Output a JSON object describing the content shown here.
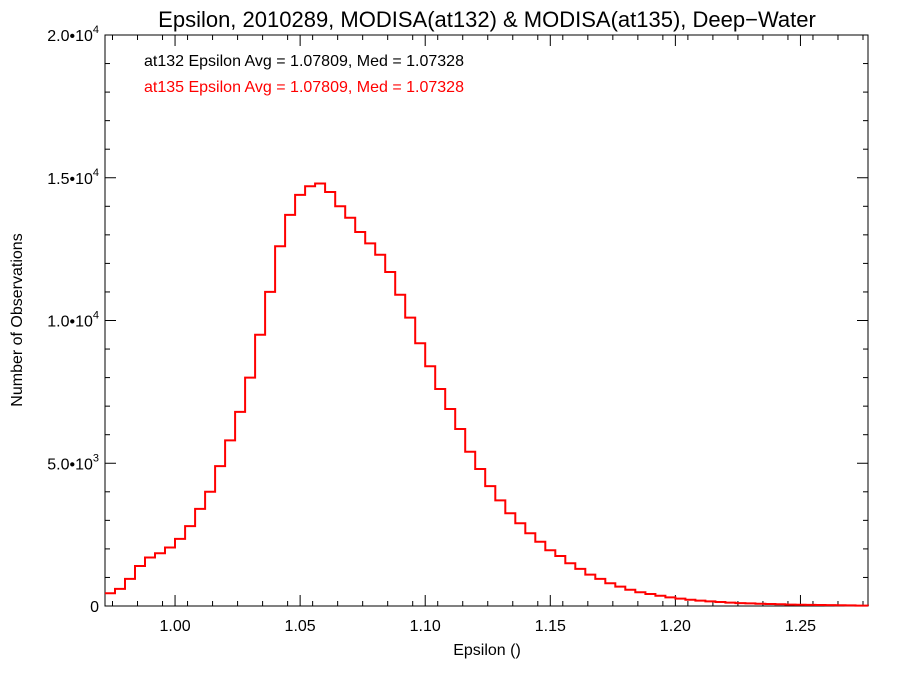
{
  "chart_data": {
    "type": "line",
    "step": true,
    "title": "Epsilon, 2010289, MODISA(at132) & MODISA(at135), Deep−Water",
    "xlabel": "Epsilon ()",
    "ylabel": "Number of Observations",
    "xlim": [
      0.972,
      1.277
    ],
    "ylim": [
      0,
      20000
    ],
    "x_ticks": [
      1.0,
      1.05,
      1.1,
      1.15,
      1.2,
      1.25
    ],
    "x_tick_labels": [
      "1.00",
      "1.05",
      "1.10",
      "1.15",
      "1.20",
      "1.25"
    ],
    "y_ticks": [
      0,
      5000,
      10000,
      15000,
      20000
    ],
    "y_tick_labels": [
      {
        "mant": "0",
        "exp": ""
      },
      {
        "mant": "5.0•10",
        "exp": "3"
      },
      {
        "mant": "1.0•10",
        "exp": "4"
      },
      {
        "mant": "1.5•10",
        "exp": "4"
      },
      {
        "mant": "2.0•10",
        "exp": "4"
      }
    ],
    "annotations": [
      {
        "text": "at132 Epsilon Avg = 1.07809, Med = 1.07328",
        "color": "#000000"
      },
      {
        "text": "at135 Epsilon Avg = 1.07809, Med = 1.07328",
        "color": "#ff0000"
      }
    ],
    "series": [
      {
        "color": "#ff0000",
        "x": [
          0.972,
          0.976,
          0.98,
          0.984,
          0.988,
          0.992,
          0.996,
          1.0,
          1.004,
          1.008,
          1.012,
          1.016,
          1.02,
          1.024,
          1.028,
          1.032,
          1.036,
          1.04,
          1.044,
          1.048,
          1.052,
          1.056,
          1.06,
          1.064,
          1.068,
          1.072,
          1.076,
          1.08,
          1.084,
          1.088,
          1.092,
          1.096,
          1.1,
          1.104,
          1.108,
          1.112,
          1.116,
          1.12,
          1.124,
          1.128,
          1.132,
          1.136,
          1.14,
          1.144,
          1.148,
          1.152,
          1.156,
          1.16,
          1.164,
          1.168,
          1.172,
          1.176,
          1.18,
          1.184,
          1.188,
          1.192,
          1.196,
          1.2,
          1.204,
          1.208,
          1.212,
          1.216,
          1.22,
          1.224,
          1.228,
          1.232,
          1.236,
          1.24,
          1.244,
          1.248,
          1.252,
          1.256,
          1.26,
          1.264,
          1.268,
          1.272,
          1.277
        ],
        "y": [
          450,
          600,
          950,
          1400,
          1700,
          1850,
          2050,
          2350,
          2800,
          3400,
          4000,
          4900,
          5800,
          6800,
          8000,
          9500,
          11000,
          12600,
          13700,
          14400,
          14700,
          14800,
          14500,
          14000,
          13600,
          13100,
          12700,
          12300,
          11700,
          10900,
          10100,
          9200,
          8400,
          7600,
          6900,
          6200,
          5400,
          4800,
          4200,
          3700,
          3250,
          2900,
          2550,
          2250,
          1950,
          1750,
          1500,
          1300,
          1100,
          950,
          800,
          680,
          570,
          480,
          420,
          360,
          300,
          260,
          220,
          190,
          160,
          140,
          120,
          100,
          90,
          80,
          70,
          60,
          50,
          45,
          40,
          35,
          30,
          25,
          20,
          15,
          10
        ]
      }
    ]
  }
}
